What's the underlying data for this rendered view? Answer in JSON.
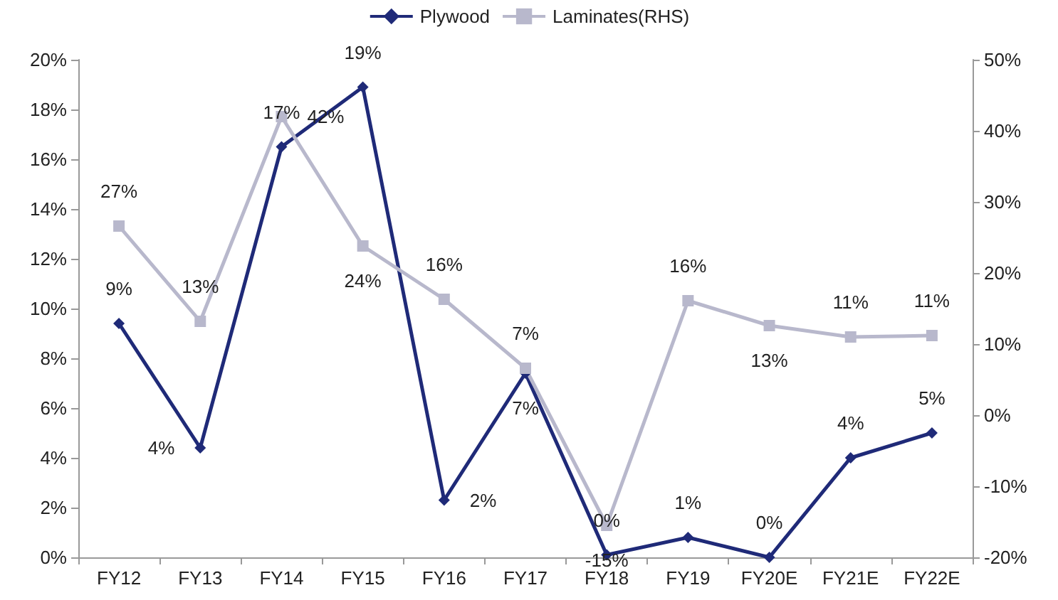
{
  "chart_data": {
    "type": "line",
    "categories": [
      "FY12",
      "FY13",
      "FY14",
      "FY15",
      "FY16",
      "FY17",
      "FY18",
      "FY19",
      "FY20E",
      "FY21E",
      "FY22E"
    ],
    "series": [
      {
        "name": "Plywood",
        "color": "#1f2a78",
        "marker": "diamond",
        "values": [
          9.4,
          4.4,
          16.5,
          18.9,
          2.3,
          7.4,
          0.1,
          0.8,
          0,
          4.0,
          5.0
        ],
        "value_labels": [
          "9%",
          "4%",
          "17%",
          "19%",
          "2%",
          "7%",
          "0%",
          "1%",
          "0%",
          "4%",
          "5%"
        ]
      },
      {
        "name": "Laminates(RHS)",
        "color": "#b8b8cc",
        "marker": "square",
        "axis": "y2",
        "values": [
          26.6,
          13.2,
          42,
          23.8,
          16.3,
          6.6,
          -15.5,
          16.1,
          12.6,
          11,
          11.2
        ],
        "value_labels": [
          "27%",
          "13%",
          "42%",
          "24%",
          "16%",
          "7%",
          "-15%",
          "16%",
          "13%",
          "11%",
          "11%"
        ]
      }
    ],
    "ylim": [
      0,
      20
    ],
    "yticks": [
      {
        "value": 0,
        "label": "0%"
      },
      {
        "value": 2,
        "label": "2%"
      },
      {
        "value": 4,
        "label": "4%"
      },
      {
        "value": 6,
        "label": "6%"
      },
      {
        "value": 8,
        "label": "8%"
      },
      {
        "value": 10,
        "label": "10%"
      },
      {
        "value": 12,
        "label": "12%"
      },
      {
        "value": 14,
        "label": "14%"
      },
      {
        "value": 16,
        "label": "16%"
      },
      {
        "value": 18,
        "label": "18%"
      },
      {
        "value": 20,
        "label": "20%"
      }
    ],
    "y2lim": [
      -20,
      50
    ],
    "y2ticks": [
      {
        "value": -20,
        "label": "-20%"
      },
      {
        "value": -10,
        "label": "-10%"
      },
      {
        "value": 0,
        "label": "0%"
      },
      {
        "value": 10,
        "label": "10%"
      },
      {
        "value": 20,
        "label": "20%"
      },
      {
        "value": 30,
        "label": "30%"
      },
      {
        "value": 40,
        "label": "40%"
      },
      {
        "value": 50,
        "label": "50%"
      }
    ],
    "legend": "top",
    "grid": false
  }
}
